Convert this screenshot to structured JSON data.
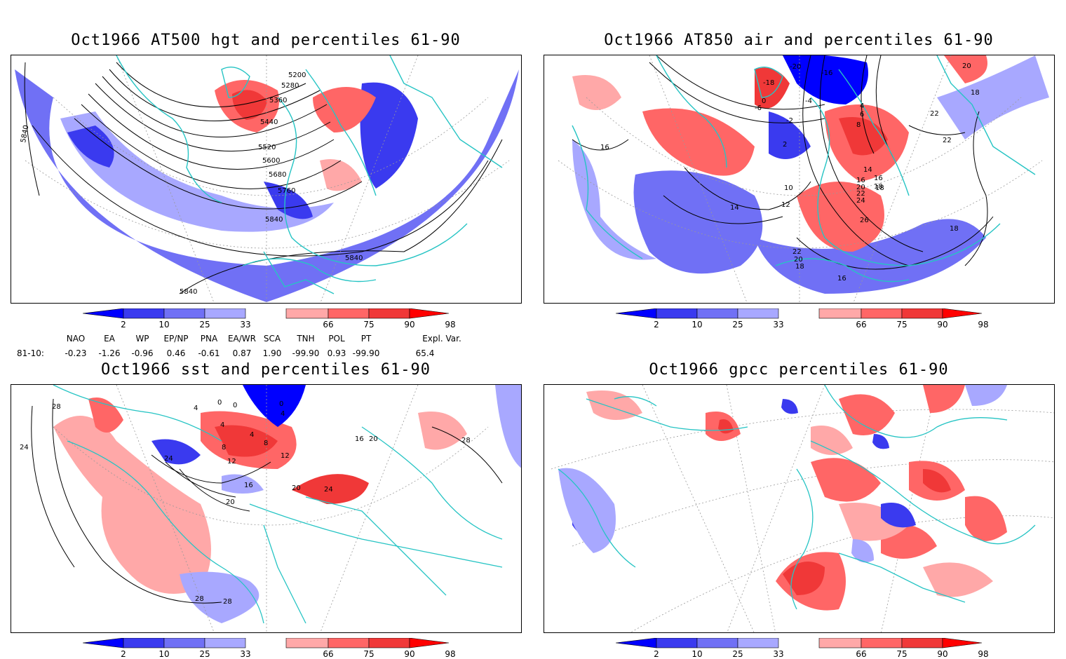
{
  "panels": [
    {
      "id": "p1",
      "title": "Oct1966 AT500 hgt and percentiles 61-90",
      "contour_labels": [
        "5200",
        "5280",
        "5360",
        "5440",
        "5520",
        "5600",
        "5680",
        "5760",
        "5840",
        "5840",
        "5840",
        "5840"
      ]
    },
    {
      "id": "p2",
      "title": "Oct1966 AT850 air and percentiles 61-90",
      "contour_labels": [
        "-20",
        "-16",
        "-18",
        "-6",
        "0",
        "-2",
        "-4",
        "2",
        "4",
        "6",
        "8",
        "14",
        "16",
        "18",
        "20",
        "22",
        "24",
        "26",
        "22",
        "20",
        "18",
        "16",
        "10",
        "12",
        "14",
        "16",
        "18",
        "22",
        "22",
        "18",
        "20",
        "18",
        "16"
      ]
    },
    {
      "id": "p3",
      "title": "Oct1966 sst and percentiles 61-90",
      "contour_labels": [
        "28",
        "24",
        "24",
        "4",
        "0",
        "0",
        "0",
        "4",
        "4",
        "4",
        "8",
        "8",
        "12",
        "12",
        "16",
        "20",
        "20",
        "24",
        "16",
        "20",
        "28",
        "28",
        "28"
      ]
    },
    {
      "id": "p4",
      "title": "Oct1966 gpcc percentiles 61-90",
      "contour_labels": []
    }
  ],
  "colorbar": {
    "ticks": [
      "2",
      "10",
      "25",
      "33",
      "66",
      "75",
      "90",
      "98"
    ],
    "colors": {
      "c2": "#0000ff",
      "c10": "#3a3aef",
      "c25": "#7070f5",
      "c33": "#a8a8ff",
      "c66": "#ffa8a8",
      "c75": "#ff6666",
      "c90": "#f03838",
      "c98": "#ff0000"
    }
  },
  "indices": {
    "headers": [
      "NAO",
      "EA",
      "WP",
      "EP/NP",
      "PNA",
      "EA/WR",
      "SCA",
      "TNH",
      "POL",
      "PT",
      "Expl. Var."
    ],
    "row_label": "81-10:",
    "values": [
      "-0.23",
      "-1.26",
      "-0.96",
      "0.46",
      "-0.61",
      "0.87",
      "1.90",
      "-99.90",
      "0.93",
      "-99.90",
      "65.4"
    ]
  },
  "map_colors": {
    "coast": "#26c4c4",
    "contour": "#000000",
    "grid": "#999999"
  }
}
